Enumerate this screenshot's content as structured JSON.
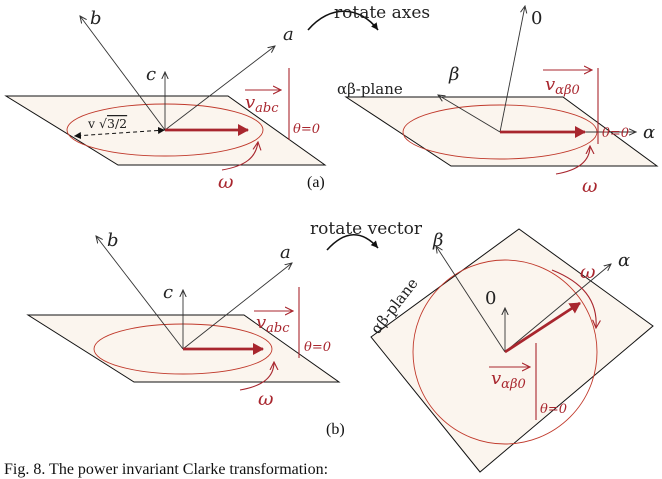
{
  "panels": {
    "a": {
      "tag": "(a)",
      "action": "rotate axes",
      "left": {
        "axis_labels": [
          "b",
          "a",
          "c"
        ],
        "vector": "v",
        "vector_sub": "abc",
        "eval": "θ=0",
        "amplitude_note": "v",
        "amplitude_root": "3/2",
        "omega": "ω"
      },
      "right": {
        "axis_labels": [
          "0",
          "β",
          "α"
        ],
        "plane_label": "αβ-plane",
        "vector": "v",
        "vector_sub": "αβ0",
        "eval": "θ=0",
        "omega": "ω"
      }
    },
    "b": {
      "tag": "(b)",
      "action": "rotate vector",
      "left": {
        "axis_labels": [
          "b",
          "a",
          "c"
        ],
        "vector": "v",
        "vector_sub": "abc",
        "eval": "θ=0",
        "omega": "ω"
      },
      "right": {
        "axis_labels": [
          "β",
          "α",
          "0"
        ],
        "plane_label": "αβ-plane",
        "vector": "v",
        "vector_sub": "αβ0",
        "eval": "θ=0",
        "omega": "ω"
      }
    }
  },
  "caption": "Fig. 8.   The power invariant Clarke transformation:",
  "colors": {
    "accent": "#a8262e",
    "ellipse": "#c0392b",
    "plane_fill": "#fbf5ee"
  }
}
